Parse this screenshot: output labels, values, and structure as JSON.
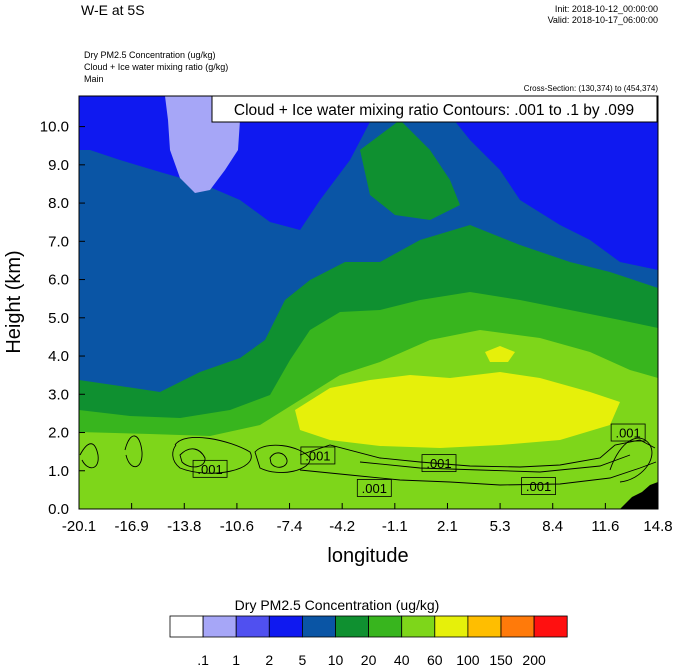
{
  "header": {
    "title": "W-E at 5S",
    "init": "Init: 2018-10-12_00:00:00",
    "valid": "Valid: 2018-10-17_06:00:00",
    "fields": [
      "Dry PM2.5 Concentration   (ug/kg)",
      "Cloud + Ice water mixing ratio   (g/kg)",
      "Main"
    ],
    "cross_section": "Cross-Section: (130,374) to (454,374)"
  },
  "contour_info": "Cloud + Ice water mixing ratio Contours: .001 to .1 by .099",
  "colorbar": {
    "title": "Dry PM2.5 Concentration  (ug/kg)",
    "levels": [
      ".1",
      "1",
      "2",
      "5",
      "10",
      "20",
      "40",
      "60",
      "100",
      "150",
      "200"
    ],
    "colors": [
      "#ffffff",
      "#a6a6f7",
      "#5050f0",
      "#0f19f0",
      "#0a55a5",
      "#0f9030",
      "#38b51e",
      "#7ed61a",
      "#e6f00a",
      "#ffbe00",
      "#ff7a0a",
      "#ff1010"
    ]
  },
  "chart_data": {
    "type": "heatmap",
    "xlabel": "longitude",
    "ylabel": "Height (km)",
    "xlim": [
      -20.1,
      14.8
    ],
    "ylim": [
      0.0,
      10.8
    ],
    "x_ticks": [
      "-20.1",
      "-16.9",
      "-13.8",
      "-10.6",
      "-7.4",
      "-4.2",
      "-1.1",
      "2.1",
      "5.3",
      "8.4",
      "11.6",
      "14.8"
    ],
    "y_ticks": [
      "0.0",
      "1.0",
      "2.0",
      "3.0",
      "4.0",
      "5.0",
      "6.0",
      "7.0",
      "8.0",
      "9.0",
      "10.0"
    ],
    "fill_variable": "Dry PM2.5 Concentration (ug/kg)",
    "contour_variable": "Cloud + Ice water mixing ratio (g/kg)",
    "contour_labels": [
      {
        "text": ".001",
        "x": -12.2,
        "y": 1.05
      },
      {
        "text": ".001",
        "x": -5.7,
        "y": 1.4
      },
      {
        "text": ".001",
        "x": -2.3,
        "y": 0.55
      },
      {
        "text": ".001",
        "x": 1.6,
        "y": 1.2
      },
      {
        "text": ".001",
        "x": 7.6,
        "y": 0.6
      },
      {
        "text": ".001",
        "x": 13.0,
        "y": 2.0
      }
    ]
  }
}
